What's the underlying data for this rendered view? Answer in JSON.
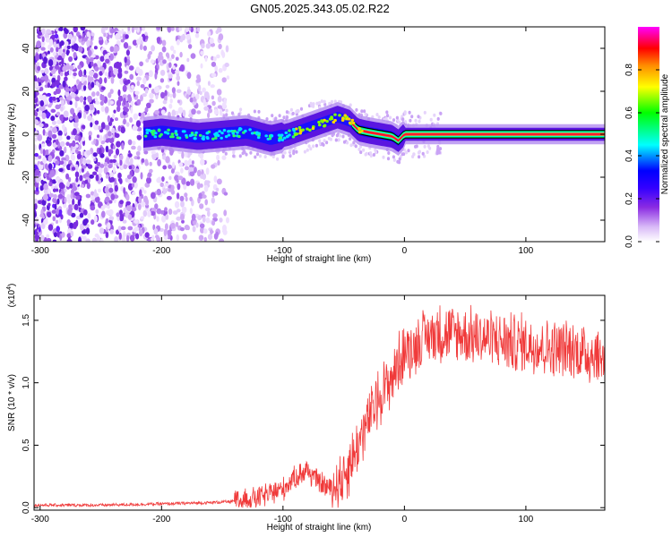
{
  "title": "GN05.2025.343.05.02.R22",
  "chart_data": [
    {
      "type": "heatmap",
      "xlabel": "Height of straight line (km)",
      "ylabel": "Frequency (Hz)",
      "xlim": [
        -305,
        165
      ],
      "ylim": [
        -50,
        50
      ],
      "xticks": [
        -300,
        -200,
        -100,
        0,
        100
      ],
      "xtick_labels": [
        "-300",
        "-200",
        "-100",
        "0",
        "100"
      ],
      "yticks": [
        -40,
        -20,
        0,
        20,
        40
      ],
      "ytick_labels": [
        "-40",
        "-20",
        "0",
        "20",
        "40"
      ],
      "colorbar": {
        "label": "Normalized spectral amplitude",
        "range": [
          0,
          1
        ],
        "ticks": [
          0.0,
          0.2,
          0.4,
          0.6,
          0.8
        ],
        "tick_labels": [
          "0.0",
          "0.2",
          "0.4",
          "0.6",
          "0.8"
        ],
        "colors": [
          "#f2e6ff",
          "#c9a3f5",
          "#8a2be2",
          "#4b00ff",
          "#0000ff",
          "#00ffff",
          "#00ff00",
          "#ffff00",
          "#ff8c00",
          "#ff0000",
          "#ff00ff"
        ]
      },
      "ridge": {
        "x": [
          -215,
          -200,
          -185,
          -170,
          -150,
          -130,
          -110,
          -95,
          -80,
          -65,
          -55,
          -45,
          -38,
          -30,
          -20,
          -10,
          -5,
          0,
          20,
          60,
          100,
          165
        ],
        "y": [
          0,
          1,
          0,
          -1,
          0,
          1,
          -2,
          0,
          3,
          6,
          8,
          6,
          2,
          1,
          0,
          -1,
          -3,
          0,
          0,
          0,
          0,
          0
        ]
      },
      "noise_region": [
        -305,
        -145
      ]
    },
    {
      "type": "line",
      "xlabel": "Height of straight line (km)",
      "ylabel": "SNR (10 * v/v)",
      "yscale_label": "(x10",
      "yscale_exp": "4",
      "xlim": [
        -305,
        165
      ],
      "ylim": [
        -0.02,
        1.7
      ],
      "xticks": [
        -300,
        -200,
        -100,
        0,
        100
      ],
      "xtick_labels": [
        "-300",
        "-200",
        "-100",
        "0",
        "100"
      ],
      "yticks": [
        0.0,
        0.5,
        1.0,
        1.5
      ],
      "ytick_labels": [
        "0.0",
        "0.5",
        "1.0",
        "1.5"
      ],
      "color": "#f03a3a",
      "envelope": {
        "x": [
          -305,
          -250,
          -200,
          -160,
          -140,
          -120,
          -100,
          -90,
          -80,
          -70,
          -60,
          -50,
          -40,
          -30,
          -20,
          -10,
          0,
          10,
          20,
          30,
          50,
          70,
          90,
          110,
          130,
          150,
          165
        ],
        "y": [
          0.02,
          0.02,
          0.03,
          0.04,
          0.05,
          0.08,
          0.15,
          0.25,
          0.3,
          0.2,
          0.15,
          0.25,
          0.45,
          0.7,
          0.9,
          1.05,
          1.25,
          1.3,
          1.38,
          1.4,
          1.38,
          1.35,
          1.32,
          1.3,
          1.27,
          1.24,
          1.2
        ]
      }
    }
  ]
}
